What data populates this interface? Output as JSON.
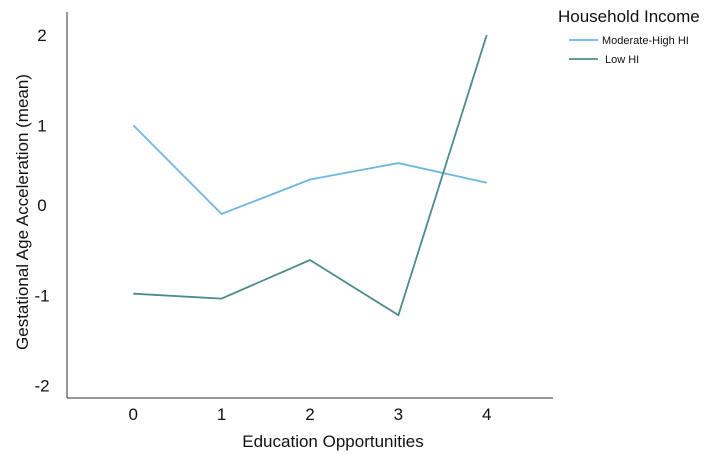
{
  "chart_data": {
    "type": "line",
    "xlabel": "Education Opportunities",
    "ylabel": "Gestational Age Acceleration (mean)",
    "x": [
      0,
      1,
      2,
      3,
      4
    ],
    "x_ticks": [
      "0",
      "1",
      "2",
      "3",
      "4"
    ],
    "y_ticks": [
      "2",
      "1",
      "0",
      "-1",
      "-2"
    ],
    "y_tick_values": [
      2,
      1,
      0,
      -1,
      -2
    ],
    "y_tick_positions": [
      2.07,
      0.97,
      0.0,
      -1.1,
      -2.2
    ],
    "xlim": [
      -0.75,
      4.75
    ],
    "ylim": [
      -2.35,
      2.35
    ],
    "legend_title": "Household Income",
    "legend_position": "top-right",
    "grid": false,
    "series": [
      {
        "name": "Moderate-High HI",
        "color": "#6db6e0",
        "values": [
          0.97,
          -0.11,
          0.31,
          0.51,
          0.27
        ]
      },
      {
        "name": "Low HI",
        "color": "#4b8c88",
        "values": [
          -1.08,
          -1.14,
          -0.67,
          -1.34,
          2.07
        ]
      }
    ]
  }
}
